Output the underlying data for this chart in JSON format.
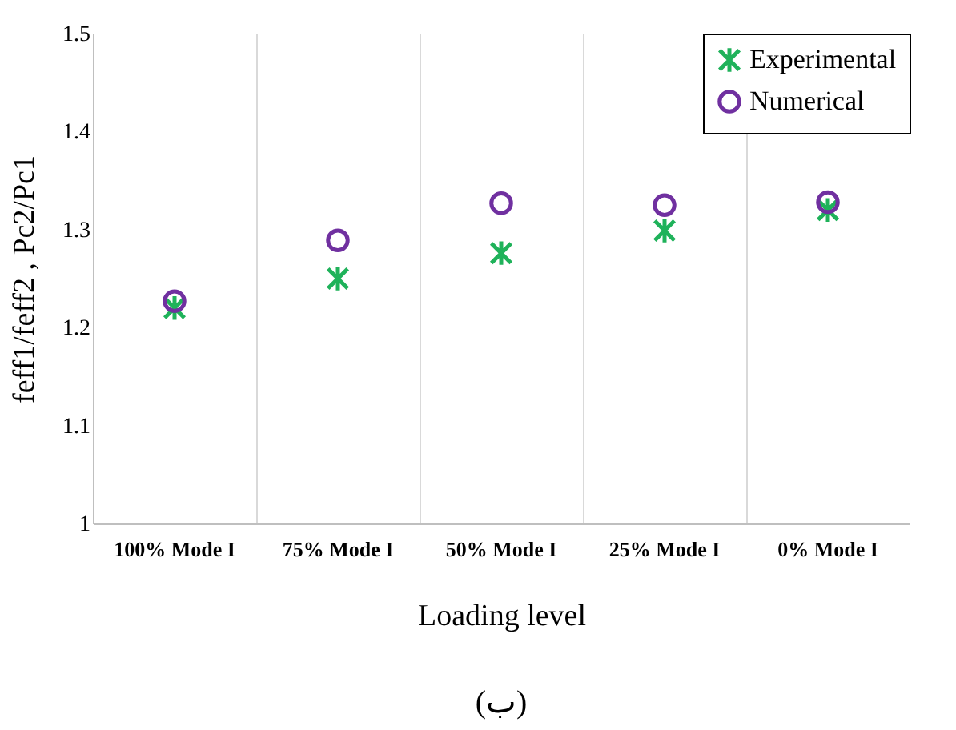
{
  "chart_data": {
    "type": "scatter",
    "xlabel": "Loading level",
    "ylabel": "feff1/feff2 , Pc2/Pc1",
    "categories": [
      "100% Mode I",
      "75% Mode I",
      "50% Mode I",
      "25% Mode I",
      "0% Mode I"
    ],
    "series": [
      {
        "name": "Experimental",
        "color": "#1fb25a",
        "marker": "cross",
        "values": [
          1.22,
          1.25,
          1.276,
          1.299,
          1.32
        ]
      },
      {
        "name": "Numerical",
        "color": "#7030a0",
        "marker": "circle",
        "values": [
          1.227,
          1.289,
          1.327,
          1.325,
          1.328
        ]
      }
    ],
    "ylim": [
      1,
      1.5
    ],
    "yticks": [
      1,
      1.1,
      1.2,
      1.3,
      1.4,
      1.5
    ],
    "grid": "x",
    "legend": "top right",
    "annotations": [
      "(ب)"
    ]
  }
}
